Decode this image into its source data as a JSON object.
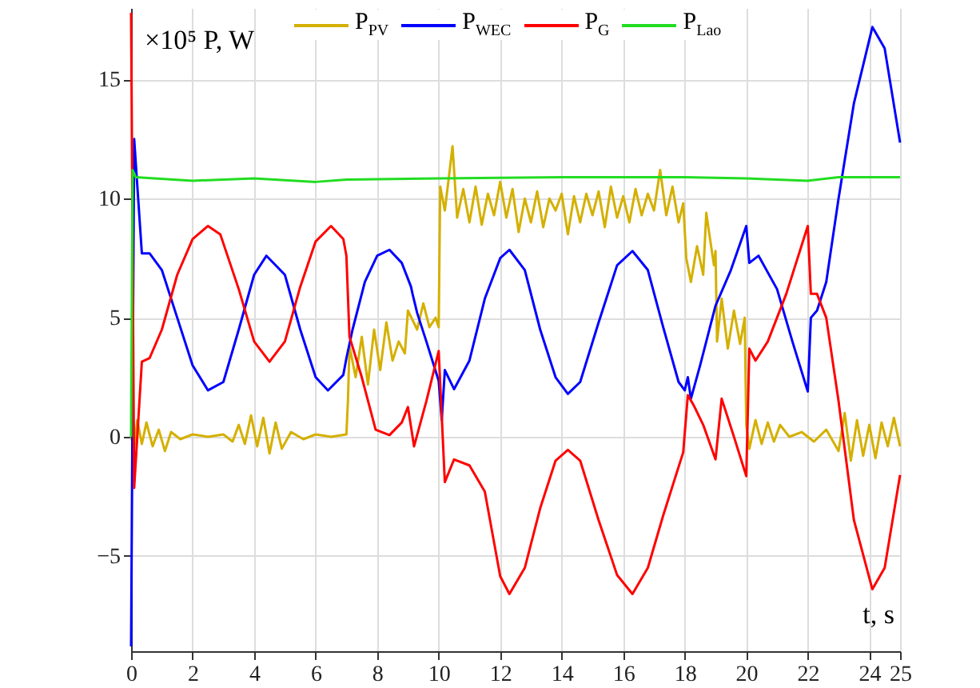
{
  "chart_data": {
    "type": "line",
    "xlabel": "t, s",
    "ylabel": "×10⁵  P, W",
    "xlim": [
      0,
      25
    ],
    "ylim": [
      -9,
      18
    ],
    "xticks": [
      0,
      2,
      4,
      6,
      8,
      10,
      12,
      14,
      16,
      18,
      20,
      22,
      24,
      25
    ],
    "yticks": [
      -5,
      0,
      5,
      10,
      15
    ],
    "grid": true,
    "legend": "top",
    "line_style": "solid",
    "marker": "none",
    "series": [
      {
        "name": "P$_{PV}$",
        "color": "#d4b000",
        "x": [
          0,
          0.1,
          0.2,
          0.35,
          0.5,
          0.7,
          0.9,
          1.1,
          1.3,
          1.6,
          2,
          2.5,
          3,
          3.3,
          3.5,
          3.7,
          3.9,
          4.1,
          4.3,
          4.5,
          4.7,
          4.9,
          5.2,
          5.6,
          6,
          6.5,
          7,
          7.05,
          7.1,
          7.3,
          7.5,
          7.7,
          7.9,
          8.1,
          8.3,
          8.5,
          8.7,
          8.9,
          9,
          9.3,
          9.5,
          9.7,
          9.9,
          10,
          10.05,
          10.2,
          10.35,
          10.45,
          10.6,
          10.8,
          11,
          11.2,
          11.4,
          11.6,
          11.8,
          12,
          12.2,
          12.4,
          12.6,
          12.8,
          13,
          13.2,
          13.4,
          13.6,
          13.8,
          14,
          14.2,
          14.4,
          14.6,
          14.8,
          15,
          15.2,
          15.4,
          15.6,
          15.8,
          16,
          16.2,
          16.4,
          16.6,
          16.8,
          17,
          17.2,
          17.4,
          17.6,
          17.8,
          17.95,
          18.05,
          18.2,
          18.4,
          18.6,
          18.7,
          18.8,
          18.95,
          19,
          19.05,
          19.2,
          19.4,
          19.6,
          19.8,
          19.95,
          20,
          20.1,
          20.3,
          20.5,
          20.7,
          20.9,
          21.1,
          21.4,
          21.8,
          22.2,
          22.6,
          23,
          23.2,
          23.4,
          23.6,
          23.8,
          24,
          24.2,
          24.4,
          24.6,
          24.8,
          25
        ],
        "values": [
          0,
          -0.5,
          0.7,
          -0.3,
          0.6,
          -0.4,
          0.3,
          -0.6,
          0.2,
          -0.1,
          0.1,
          0,
          0.1,
          -0.2,
          0.5,
          -0.3,
          0.9,
          -0.4,
          0.8,
          -0.7,
          0.6,
          -0.5,
          0.2,
          -0.1,
          0.1,
          0,
          0.1,
          1.5,
          3.8,
          2.5,
          4.2,
          2.2,
          4.5,
          2.8,
          4.8,
          3.2,
          4,
          3.5,
          5.3,
          4.5,
          5.6,
          4.6,
          5,
          4.6,
          10.5,
          9.5,
          11.1,
          12.2,
          9.2,
          10.4,
          9,
          10.5,
          8.9,
          10.2,
          9.3,
          10.7,
          9.2,
          10.4,
          8.6,
          10,
          9,
          10.3,
          8.8,
          10,
          9.5,
          10.2,
          8.5,
          10.1,
          9,
          10.2,
          9.3,
          10.3,
          8.8,
          10.5,
          9.2,
          10.1,
          9,
          10.4,
          9.3,
          10.2,
          9.5,
          11.2,
          9.3,
          10.5,
          9,
          9.8,
          7.5,
          6.5,
          8,
          6.8,
          9.4,
          8.5,
          7.2,
          7.8,
          4,
          5.8,
          3.7,
          5.3,
          3.9,
          5,
          0.5,
          -0.5,
          0.7,
          -0.3,
          0.6,
          -0.2,
          0.5,
          0,
          0.2,
          -0.2,
          0.3,
          -0.6,
          1,
          -1,
          0.7,
          -0.8,
          0.5,
          -0.9,
          0.6,
          -0.4,
          0.8,
          -0.4
        ]
      },
      {
        "name": "P$_{WEC}$",
        "color": "#0000ff",
        "x": [
          0,
          0.1,
          0.35,
          0.6,
          1,
          1.5,
          2,
          2.5,
          3,
          3.5,
          4,
          4.4,
          5,
          5.5,
          6,
          6.4,
          6.9,
          7,
          7.2,
          7.6,
          8,
          8.4,
          8.8,
          9.1,
          9.15,
          9.3,
          9.6,
          10,
          10.1,
          10.2,
          10.5,
          11,
          11.5,
          12,
          12.3,
          12.8,
          13.3,
          13.8,
          14.2,
          14.6,
          15.2,
          15.8,
          16.3,
          16.8,
          17.3,
          17.8,
          18,
          18.1,
          18.2,
          18.5,
          19,
          19.5,
          20,
          20.1,
          20.4,
          21,
          21.5,
          22,
          22.1,
          22.3,
          22.6,
          23,
          23.5,
          24.1,
          24.5,
          25
        ],
        "values": [
          -8.8,
          12.5,
          7.7,
          7.7,
          7,
          5,
          3,
          1.95,
          2.3,
          4.5,
          6.8,
          7.6,
          6.8,
          4.5,
          2.5,
          1.95,
          2.6,
          3.3,
          4.5,
          6.5,
          7.6,
          7.85,
          7.3,
          6.3,
          6,
          5.2,
          4,
          2.35,
          0.7,
          2.8,
          2,
          3.2,
          5.8,
          7.5,
          7.85,
          7,
          4.5,
          2.5,
          1.8,
          2.3,
          4.8,
          7.2,
          7.8,
          7,
          4.6,
          2.3,
          1.95,
          2.5,
          1.6,
          3,
          5.5,
          7,
          8.85,
          7.3,
          7.6,
          6.2,
          4,
          1.9,
          5,
          5.3,
          6.5,
          10,
          14,
          17.2,
          16.3,
          12.35
        ]
      },
      {
        "name": "P$_{G}$",
        "color": "#ff0000",
        "x": [
          0,
          0.1,
          0.35,
          0.6,
          1,
          1.5,
          2,
          2.5,
          2.9,
          3.5,
          4,
          4.5,
          5,
          5.5,
          6,
          6.5,
          6.9,
          7,
          7.1,
          7.5,
          7.95,
          8.4,
          8.8,
          9,
          9.2,
          9.6,
          10,
          10.2,
          10.5,
          11,
          11.5,
          12,
          12.3,
          12.8,
          13.3,
          13.8,
          14.2,
          14.6,
          15.2,
          15.8,
          16.3,
          16.8,
          17.3,
          17.95,
          18.1,
          18.3,
          18.6,
          19,
          19.2,
          19.6,
          20,
          20.1,
          20.3,
          20.7,
          21.3,
          22,
          22.1,
          22.3,
          22.6,
          23,
          23.5,
          24.1,
          24.5,
          25
        ],
        "values": [
          17.8,
          -2.15,
          3.15,
          3.3,
          4.5,
          6.8,
          8.3,
          8.85,
          8.5,
          6.2,
          4,
          3.15,
          4,
          6.3,
          8.2,
          8.85,
          8.3,
          7.6,
          4.2,
          2.5,
          0.3,
          0.07,
          0.6,
          1.25,
          -0.4,
          1.5,
          3.6,
          -1.9,
          -0.95,
          -1.2,
          -2.3,
          -5.85,
          -6.6,
          -5.5,
          -3,
          -1,
          -0.55,
          -1,
          -3.5,
          -5.8,
          -6.6,
          -5.5,
          -3.3,
          -0.65,
          1.75,
          1.3,
          0.5,
          -0.95,
          1.6,
          0,
          -1.65,
          3.7,
          3.2,
          4,
          6,
          8.85,
          6,
          6,
          5,
          1.5,
          -3.5,
          -6.4,
          -5.5,
          -1.6
        ]
      },
      {
        "name": "P$_{Lao}$",
        "color": "#22dd22",
        "x": [
          0,
          0.05,
          0.15,
          2,
          4,
          6,
          7,
          10,
          14,
          18,
          20,
          22,
          23,
          25
        ],
        "values": [
          0,
          11.2,
          10.9,
          10.75,
          10.85,
          10.7,
          10.8,
          10.85,
          10.9,
          10.9,
          10.85,
          10.75,
          10.9,
          10.9
        ]
      }
    ]
  }
}
